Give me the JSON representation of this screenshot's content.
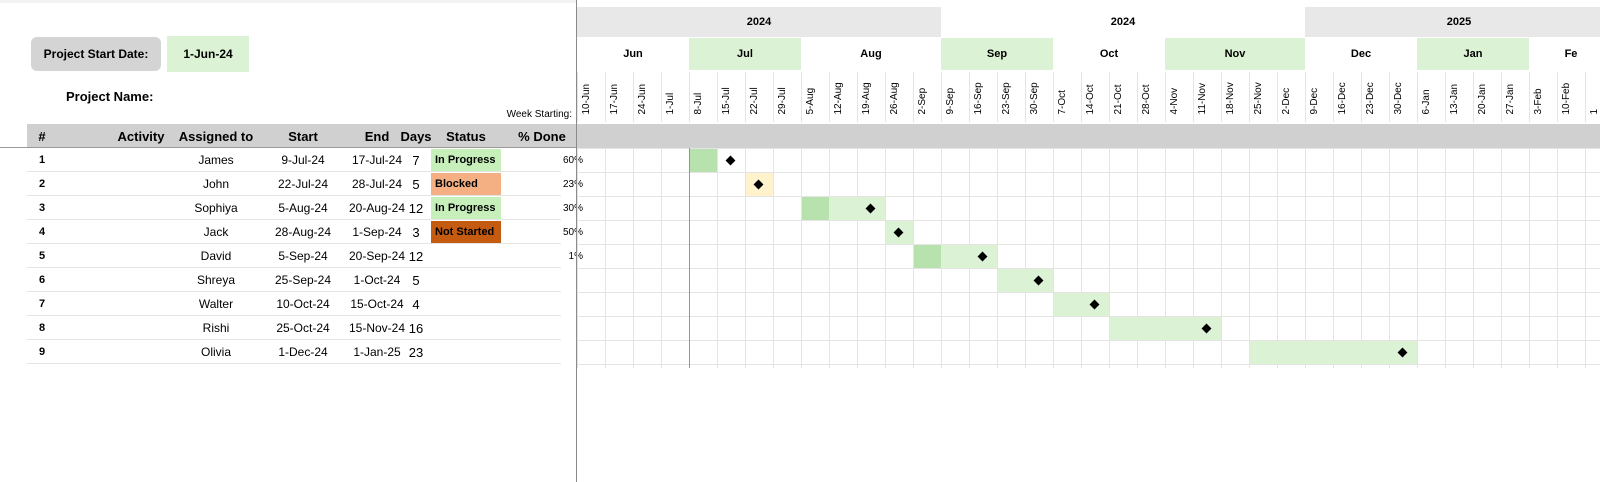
{
  "project": {
    "start_date_label": "Project Start Date:",
    "start_date_value": "1-Jun-24",
    "name_label": "Project Name:",
    "week_starting_label": "Week Starting:"
  },
  "table": {
    "headers": [
      "#",
      "Activity",
      "Assigned to",
      "Start",
      "End",
      "Days",
      "Status",
      "% Done"
    ],
    "rows": [
      {
        "num": "1",
        "activity": "",
        "assigned": "James",
        "start": "9-Jul-24",
        "end": "17-Jul-24",
        "days": "7",
        "status": "In Progress",
        "pct": "60%"
      },
      {
        "num": "2",
        "activity": "",
        "assigned": "John",
        "start": "22-Jul-24",
        "end": "28-Jul-24",
        "days": "5",
        "status": "Blocked",
        "pct": "23%"
      },
      {
        "num": "3",
        "activity": "",
        "assigned": "Sophiya",
        "start": "5-Aug-24",
        "end": "20-Aug-24",
        "days": "12",
        "status": "In Progress",
        "pct": "30%"
      },
      {
        "num": "4",
        "activity": "",
        "assigned": "Jack",
        "start": "28-Aug-24",
        "end": "1-Sep-24",
        "days": "3",
        "status": "Not Started",
        "pct": "50%"
      },
      {
        "num": "5",
        "activity": "",
        "assigned": "David",
        "start": "5-Sep-24",
        "end": "20-Sep-24",
        "days": "12",
        "status": "",
        "pct": "1%"
      },
      {
        "num": "6",
        "activity": "",
        "assigned": "Shreya",
        "start": "25-Sep-24",
        "end": "1-Oct-24",
        "days": "5",
        "status": "",
        "pct": ""
      },
      {
        "num": "7",
        "activity": "",
        "assigned": "Walter",
        "start": "10-Oct-24",
        "end": "15-Oct-24",
        "days": "4",
        "status": "",
        "pct": ""
      },
      {
        "num": "8",
        "activity": "",
        "assigned": "Rishi",
        "start": "25-Oct-24",
        "end": "15-Nov-24",
        "days": "16",
        "status": "",
        "pct": ""
      },
      {
        "num": "9",
        "activity": "",
        "assigned": "Olivia",
        "start": "1-Dec-24",
        "end": "1-Jan-25",
        "days": "23",
        "status": "",
        "pct": ""
      }
    ]
  },
  "status_colors": {
    "In Progress": "#c6efb9",
    "Blocked": "#f4b083",
    "Not Started": "#c55a11"
  },
  "gantt": {
    "years": [
      "2024",
      "2024",
      "2025"
    ],
    "months": [
      "Jun",
      "Jul",
      "Aug",
      "Sep",
      "Oct",
      "Nov",
      "Dec",
      "Jan",
      "Fe"
    ],
    "weeks": [
      "10-Jun",
      "17-Jun",
      "24-Jun",
      "1-Jul",
      "8-Jul",
      "15-Jul",
      "22-Jul",
      "29-Jul",
      "5-Aug",
      "12-Aug",
      "19-Aug",
      "26-Aug",
      "2-Sep",
      "9-Sep",
      "16-Sep",
      "23-Sep",
      "30-Sep",
      "7-Oct",
      "14-Oct",
      "21-Oct",
      "28-Oct",
      "4-Nov",
      "11-Nov",
      "18-Nov",
      "25-Nov",
      "2-Dec",
      "9-Dec",
      "16-Dec",
      "23-Dec",
      "30-Dec",
      "6-Jan",
      "13-Jan",
      "20-Jan",
      "27-Jan",
      "3-Feb",
      "10-Feb",
      "1"
    ],
    "colors": {
      "year_shade": "#e8e8e8",
      "month_shade": "#dcf2d5",
      "bar_done": "#b7e1ad",
      "bar_remaining": "#dcf2d5",
      "bar_blocked": "#fff2cc",
      "milestone": "#000000"
    }
  }
}
